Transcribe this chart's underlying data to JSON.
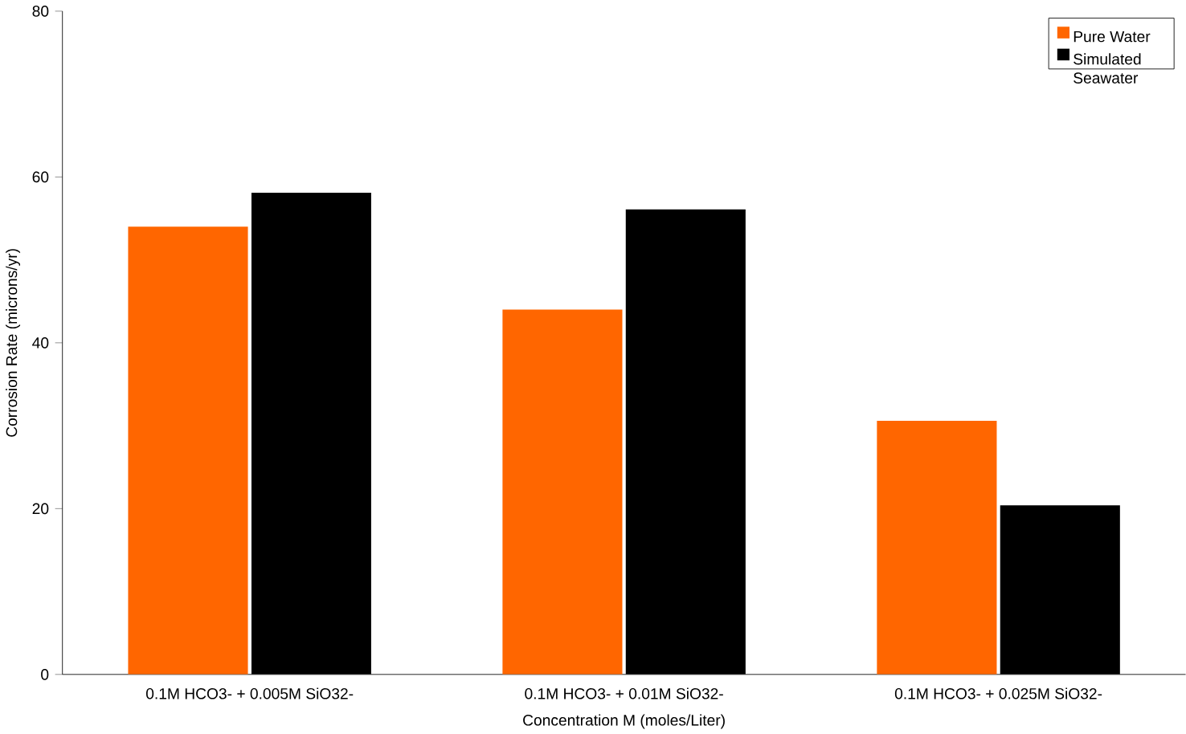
{
  "chart_data": {
    "type": "bar",
    "xlabel": "Concentration M (moles/Liter)",
    "ylabel": "Corrosion Rate (microns/yr)",
    "categories": [
      "0.1M HCO3- + 0.005M SiO32-",
      "0.1M HCO3- + 0.01M SiO32-",
      "0.1M HCO3- + 0.025M SiO32-"
    ],
    "series": [
      {
        "name": "Pure Water",
        "color": "#ff6600",
        "values": [
          54,
          44,
          30.6
        ]
      },
      {
        "name": "Simulated Seawater",
        "color": "#000000",
        "values": [
          58.1,
          56.1,
          20.4
        ]
      }
    ],
    "ylim": [
      0,
      80
    ],
    "yticks": [
      0,
      20,
      40,
      60,
      80
    ],
    "grid": false,
    "legend": "top right"
  }
}
